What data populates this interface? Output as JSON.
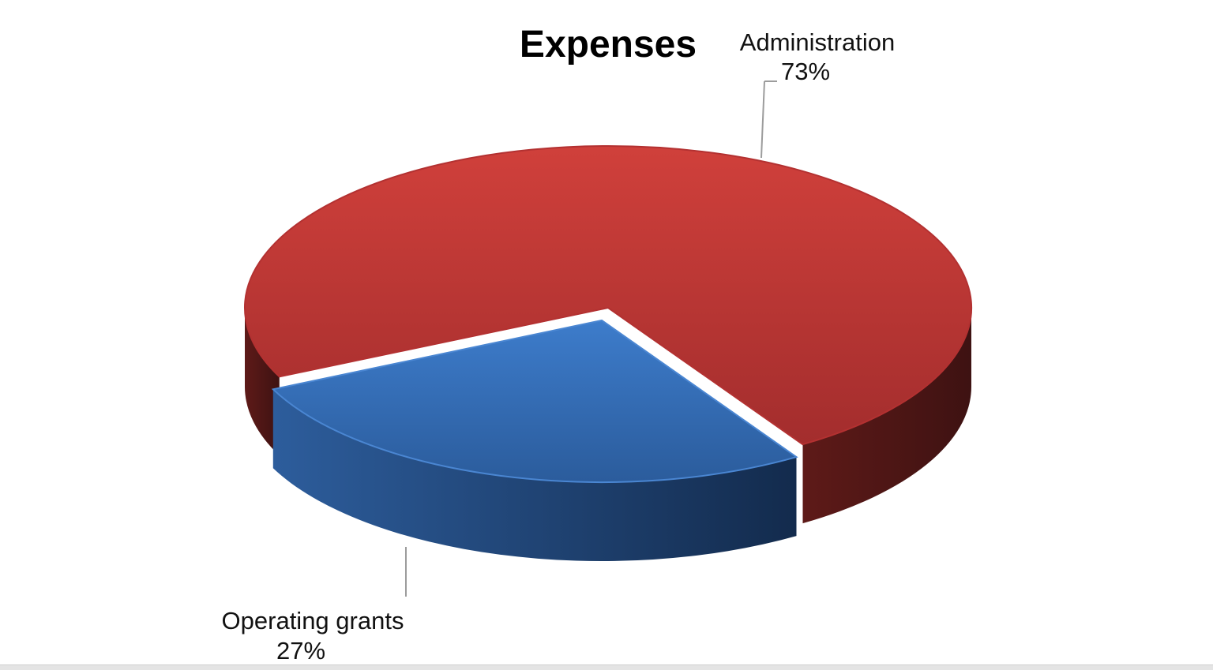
{
  "chart_data": {
    "type": "pie",
    "style": "3d",
    "title": "Expenses",
    "slices": [
      {
        "name": "Administration",
        "value": 73,
        "label": "73%",
        "color": "#c93a3a",
        "side_color": "#5a1616"
      },
      {
        "name": "Operating grants",
        "value": 27,
        "label": "27%",
        "color": "#3a76c6",
        "side_color": "#1f4576"
      }
    ]
  }
}
